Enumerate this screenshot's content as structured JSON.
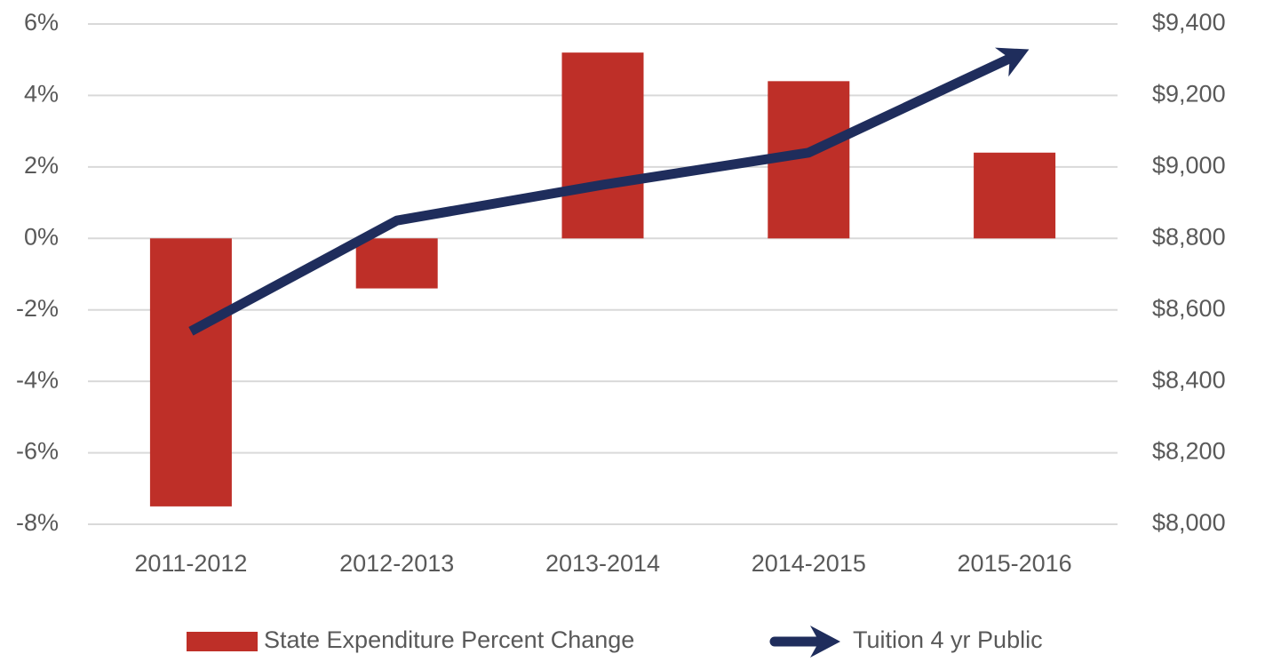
{
  "chart_data": {
    "type": "bar",
    "categories": [
      "2011-2012",
      "2012-2013",
      "2013-2014",
      "2014-2015",
      "2015-2016"
    ],
    "series": [
      {
        "name": "State Expenditure Percent Change",
        "type": "bar",
        "color": "#be2f28",
        "values": [
          -7.5,
          -1.4,
          5.2,
          4.4,
          2.4
        ]
      },
      {
        "name": "Tuition 4 yr Public",
        "type": "line",
        "axis": "y2",
        "color": "#1f2d5c",
        "values": [
          8540,
          8850,
          8950,
          9040,
          9310
        ]
      }
    ],
    "ylim": [
      -8,
      6
    ],
    "yticks": [
      {
        "value": -8,
        "label": "-8%"
      },
      {
        "value": -6,
        "label": "-6%"
      },
      {
        "value": -4,
        "label": "-4%"
      },
      {
        "value": -2,
        "label": "-2%"
      },
      {
        "value": 0,
        "label": "0%"
      },
      {
        "value": 2,
        "label": "2%"
      },
      {
        "value": 4,
        "label": "4%"
      },
      {
        "value": 6,
        "label": "6%"
      }
    ],
    "y2lim": [
      8000,
      9400
    ],
    "y2ticks": [
      {
        "value": 8000,
        "label": "$8,000"
      },
      {
        "value": 8200,
        "label": "$8,200"
      },
      {
        "value": 8400,
        "label": "$8,400"
      },
      {
        "value": 8600,
        "label": "$8,600"
      },
      {
        "value": 8800,
        "label": "$8,800"
      },
      {
        "value": 9000,
        "label": "$9,000"
      },
      {
        "value": 9200,
        "label": "$9,200"
      },
      {
        "value": 9400,
        "label": "$9,400"
      }
    ],
    "grid": true,
    "legend": "bottom"
  }
}
